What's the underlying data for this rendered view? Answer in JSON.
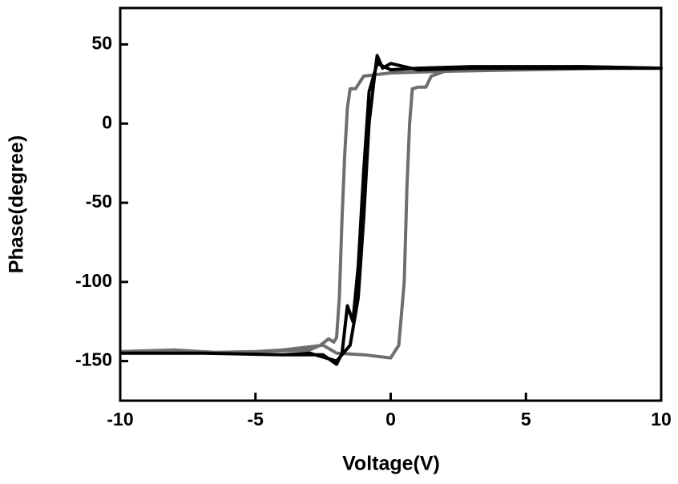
{
  "chart_data": {
    "type": "line",
    "x_label": "Voltage(V)",
    "y_label": "Phase(degree)",
    "xlim": [
      -10,
      10
    ],
    "xticks": [
      -10,
      -5,
      0,
      5,
      10
    ],
    "ylim": [
      -175,
      73
    ],
    "yticks": [
      -150,
      -100,
      -50,
      0,
      50
    ],
    "series": [
      {
        "color": "#6e6e6e",
        "x": [
          -10,
          -8,
          -6,
          -4,
          -3,
          -2.5,
          -2,
          -1,
          0,
          0.3,
          0.5,
          0.6,
          0.7,
          0.8,
          1,
          1.3,
          1.5,
          2,
          3,
          5,
          7,
          10,
          8,
          5,
          2,
          0,
          -0.5,
          -1,
          -1.3,
          -1.5,
          -1.6,
          -1.7,
          -1.8,
          -1.9,
          -2,
          -2.1,
          -2.3,
          -2.6,
          -3,
          -5,
          -8,
          -10
        ],
        "values": [
          -144,
          -143,
          -145,
          -143,
          -141,
          -140,
          -145,
          -146,
          -148,
          -140,
          -100,
          -40,
          0,
          22,
          23,
          23,
          30,
          33,
          35,
          35,
          36,
          35,
          35,
          34,
          33,
          32,
          31,
          30,
          22,
          22,
          10,
          -20,
          -60,
          -110,
          -135,
          -138,
          -136,
          -140,
          -143,
          -144,
          -145,
          -144
        ]
      },
      {
        "color": "#000000",
        "x": [
          -10,
          -7,
          -4,
          -3,
          -2,
          -1.5,
          -1.2,
          -1,
          -0.8,
          -0.6,
          -0.5,
          -0.3,
          0,
          1,
          3,
          6,
          10,
          7,
          3,
          1,
          0,
          -0.5,
          -0.8,
          -1,
          -1.2,
          -1.4,
          -1.6,
          -1.8,
          -2,
          -2.5,
          -4,
          -7,
          -10
        ],
        "values": [
          -145,
          -145,
          -146,
          -145,
          -150,
          -140,
          -110,
          -60,
          0,
          30,
          43,
          35,
          38,
          34,
          35,
          35,
          35,
          36,
          36,
          35,
          34,
          38,
          20,
          -30,
          -90,
          -125,
          -115,
          -145,
          -152,
          -146,
          -146,
          -145,
          -145
        ]
      }
    ]
  }
}
